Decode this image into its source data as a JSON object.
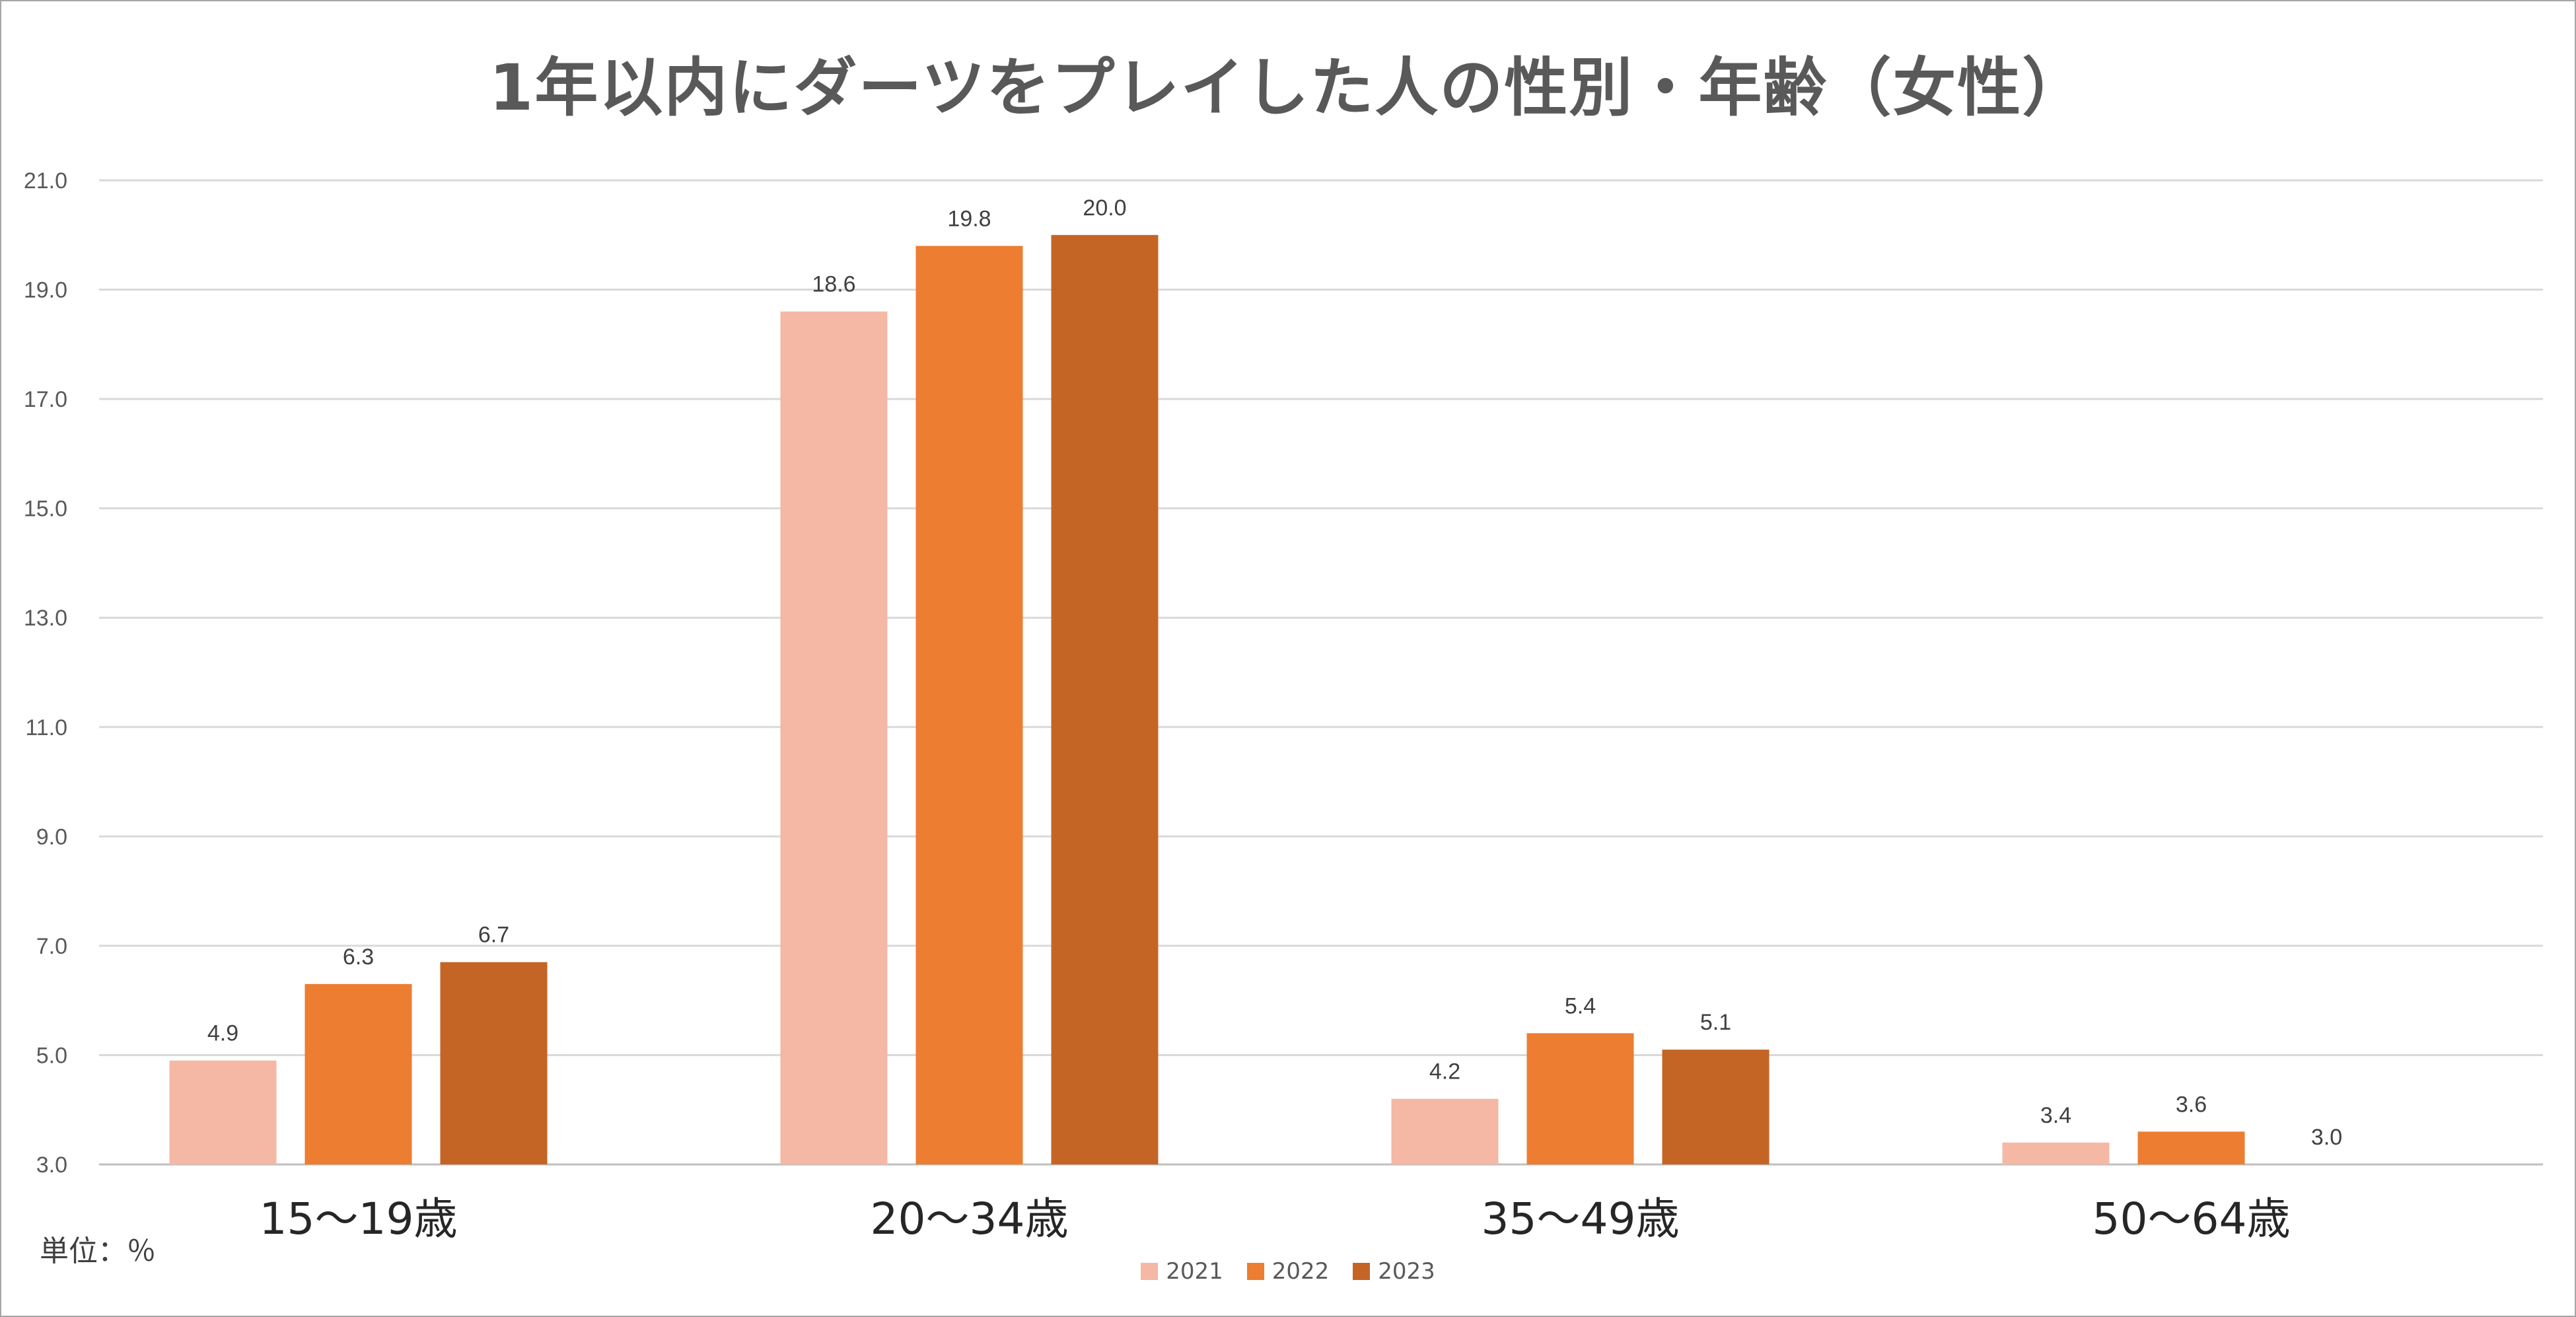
{
  "chart_data": {
    "type": "bar",
    "title": "1年以内にダーツをプレイした人の性別・年齢（女性）",
    "unit_note": "単位：％",
    "categories": [
      "15～19歳",
      "20～34歳",
      "35～49歳",
      "50～64歳"
    ],
    "series": [
      {
        "name": "2021",
        "color": "#F4B8A5",
        "values": [
          4.9,
          18.6,
          4.2,
          3.4
        ],
        "labels": [
          "4.9",
          "18.6",
          "4.2",
          "3.4"
        ]
      },
      {
        "name": "2022",
        "color": "#ED7D31",
        "values": [
          6.3,
          19.8,
          5.4,
          3.6
        ],
        "labels": [
          "6.3",
          "19.8",
          "5.4",
          "3.6"
        ]
      },
      {
        "name": "2023",
        "color": "#C46526",
        "values": [
          6.7,
          20.0,
          5.1,
          3.0
        ],
        "labels": [
          "6.7",
          "20.0",
          "5.1",
          "3.0"
        ]
      }
    ],
    "ylim": [
      3.0,
      21.0
    ],
    "yticks": [
      "3.0",
      "5.0",
      "7.0",
      "9.0",
      "11.0",
      "13.0",
      "15.0",
      "17.0",
      "19.0",
      "21.0"
    ],
    "grid": true,
    "legend_position": "bottom-center"
  }
}
